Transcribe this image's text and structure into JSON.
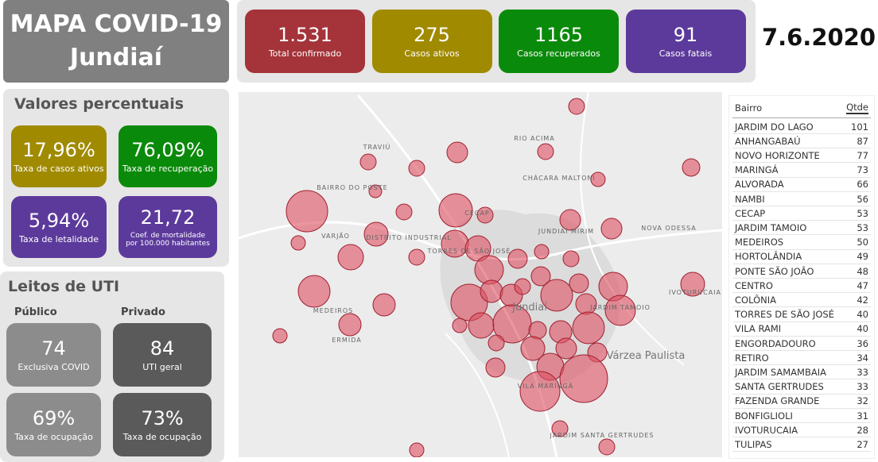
{
  "header": {
    "title_line1": "MAPA COVID-19",
    "title_line2": "Jundiaí",
    "date": "7.6.2020"
  },
  "kpis": [
    {
      "value": "1.531",
      "label": "Total confirmado",
      "color": "#a4343a"
    },
    {
      "value": "275",
      "label": "Casos ativos",
      "color": "#a08a00"
    },
    {
      "value": "1165",
      "label": "Casos recuperados",
      "color": "#0a8a0a"
    },
    {
      "value": "91",
      "label": "Casos fatais",
      "color": "#5c3a9c"
    }
  ],
  "percentages": {
    "title": "Valores percentuais",
    "cards": [
      {
        "value": "17,96%",
        "label": "Taxa de casos ativos",
        "color": "#a08a00"
      },
      {
        "value": "76,09%",
        "label": "Taxa de recuperação",
        "color": "#0a8a0a"
      },
      {
        "value": "5,94%",
        "label": "Taxa de letalidade",
        "color": "#5c3a9c"
      },
      {
        "value": "21,72",
        "label": "Coef. de mortalidade por 100.000 habitantes",
        "color": "#5c3a9c"
      }
    ]
  },
  "icu": {
    "title": "Leitos de UTI",
    "public_label": "Público",
    "private_label": "Privado",
    "cards": [
      {
        "value": "74",
        "label": "Exclusiva COVID",
        "color": "#8c8c8c"
      },
      {
        "value": "84",
        "label": "UTI geral",
        "color": "#5a5a5a"
      },
      {
        "value": "69%",
        "label": "Taxa de ocupação",
        "color": "#8c8c8c"
      },
      {
        "value": "73%",
        "label": "Taxa de ocupação",
        "color": "#5a5a5a"
      }
    ]
  },
  "map": {
    "labels": [
      "TRAVIÚ",
      "RIO ACIMA",
      "CHÁCARA MALTONI",
      "BAIRRO DO POSTE",
      "VARJÃO",
      "DISTRITO INDUSTRIAL",
      "CECAP",
      "JUNDIAÍ MIRIM",
      "NOVA ODESSA",
      "TORRES DE SÃO JOSÉ",
      "MEDEIROS",
      "ERMIDA",
      "JARDIM TAMOIO",
      "IVOTURUCAIA",
      "Várzea Paulista",
      "VILA MARINGÁ",
      "JARDIM SANTA GERTRUDES",
      "Jundiaí"
    ]
  },
  "table": {
    "columns": [
      "Bairro",
      "Qtde"
    ],
    "rows": [
      [
        "JARDIM DO LAGO",
        101
      ],
      [
        "ANHANGABAÚ",
        87
      ],
      [
        "NOVO HORIZONTE",
        77
      ],
      [
        "MARINGÁ",
        73
      ],
      [
        "ALVORADA",
        66
      ],
      [
        "NAMBI",
        56
      ],
      [
        "CECAP",
        53
      ],
      [
        "JARDIM TAMOIO",
        53
      ],
      [
        "MEDEIROS",
        50
      ],
      [
        "HORTOLÂNDIA",
        49
      ],
      [
        "PONTE SÃO JOÃO",
        48
      ],
      [
        "CENTRO",
        47
      ],
      [
        "COLÔNIA",
        42
      ],
      [
        "TORRES DE SÃO JOSÉ",
        40
      ],
      [
        "VILA RAMI",
        40
      ],
      [
        "ENGORDADOURO",
        36
      ],
      [
        "RETIRO",
        34
      ],
      [
        "JARDIM SAMAMBAIA",
        33
      ],
      [
        "SANTA GERTRUDES",
        33
      ],
      [
        "FAZENDA GRANDE",
        32
      ],
      [
        "BONFIGLIOLI",
        31
      ],
      [
        "IVOTURUCAIA",
        28
      ],
      [
        "TULIPAS",
        27
      ]
    ]
  }
}
